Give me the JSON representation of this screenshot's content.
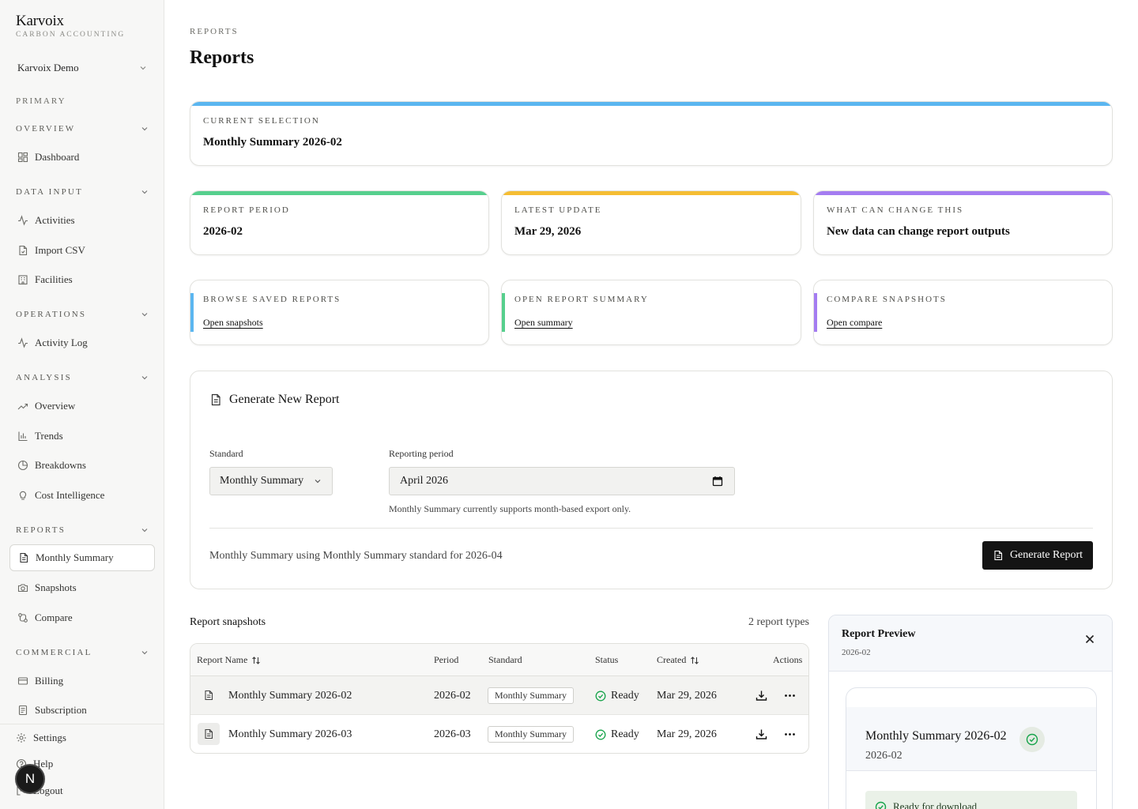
{
  "brand": {
    "name": "Karvoix",
    "subtitle": "CARBON ACCOUNTING"
  },
  "org_selector": {
    "label": "Karvoix Demo"
  },
  "sidebar": {
    "primary_label": "PRIMARY",
    "groups": [
      {
        "title": "OVERVIEW",
        "items": [
          {
            "label": "Dashboard",
            "icon": "grid-icon"
          }
        ]
      },
      {
        "title": "DATA INPUT",
        "items": [
          {
            "label": "Activities",
            "icon": "activity-icon"
          },
          {
            "label": "Import CSV",
            "icon": "file-csv-icon"
          },
          {
            "label": "Facilities",
            "icon": "building-icon"
          }
        ]
      },
      {
        "title": "OPERATIONS",
        "items": [
          {
            "label": "Activity Log",
            "icon": "activity-icon"
          }
        ]
      },
      {
        "title": "ANALYSIS",
        "items": [
          {
            "label": "Overview",
            "icon": "trending-up-icon"
          },
          {
            "label": "Trends",
            "icon": "bar-chart-icon"
          },
          {
            "label": "Breakdowns",
            "icon": "pie-chart-icon"
          },
          {
            "label": "Cost Intelligence",
            "icon": "lightbulb-icon"
          }
        ]
      },
      {
        "title": "REPORTS",
        "items": [
          {
            "label": "Monthly Summary",
            "icon": "file-text-icon",
            "active": true
          },
          {
            "label": "Snapshots",
            "icon": "camera-icon"
          },
          {
            "label": "Compare",
            "icon": "compare-icon"
          }
        ]
      },
      {
        "title": "COMMERCIAL",
        "items": [
          {
            "label": "Billing",
            "icon": "credit-card-icon"
          },
          {
            "label": "Subscription",
            "icon": "receipt-icon"
          }
        ]
      }
    ],
    "footer": [
      {
        "label": "Settings",
        "icon": "gear-icon"
      },
      {
        "label": "Help",
        "icon": "help-icon"
      },
      {
        "label": "Logout",
        "icon": "logout-icon"
      }
    ],
    "fab_letter": "N"
  },
  "page": {
    "breadcrumb": "REPORTS",
    "title": "Reports"
  },
  "current_selection": {
    "label": "CURRENT SELECTION",
    "value": "Monthly Summary 2026-02",
    "accent": "#5bb6f0"
  },
  "stats": [
    {
      "label": "REPORT PERIOD",
      "value": "2026-02",
      "accent": "#56cf8d"
    },
    {
      "label": "LATEST UPDATE",
      "value": "Mar 29, 2026",
      "accent": "#f5bd33"
    },
    {
      "label": "WHAT CAN CHANGE THIS",
      "value": "New data can change report outputs",
      "accent": "#a47cf1"
    }
  ],
  "quicklinks": [
    {
      "label": "BROWSE SAVED REPORTS",
      "link": "Open snapshots",
      "accent": "#5bb6f0"
    },
    {
      "label": "OPEN REPORT SUMMARY",
      "link": "Open summary",
      "accent": "#56cf8d"
    },
    {
      "label": "COMPARE SNAPSHOTS",
      "link": "Open compare",
      "accent": "#a47cf1"
    }
  ],
  "generate": {
    "title": "Generate New Report",
    "standard_label": "Standard",
    "standard_value": "Monthly Summary",
    "period_label": "Reporting period",
    "period_value": "April 2026",
    "hint": "Monthly Summary currently supports month-based export only.",
    "summary": "Monthly Summary using Monthly Summary standard for 2026-04",
    "button": "Generate Report"
  },
  "snapshots": {
    "title": "Report snapshots",
    "count": "2 report types",
    "columns": {
      "name": "Report Name",
      "period": "Period",
      "standard": "Standard",
      "status": "Status",
      "created": "Created",
      "actions": "Actions"
    },
    "rows": [
      {
        "name": "Monthly Summary 2026-02",
        "period": "2026-02",
        "standard": "Monthly Summary",
        "status": "Ready",
        "created": "Mar 29, 2026"
      },
      {
        "name": "Monthly Summary 2026-03",
        "period": "2026-03",
        "standard": "Monthly Summary",
        "status": "Ready",
        "created": "Mar 29, 2026"
      }
    ]
  },
  "preview": {
    "title": "Report Preview",
    "subtitle": "2026-02",
    "report_name": "Monthly Summary 2026-02",
    "report_period": "2026-02",
    "ready_text": "Ready for download",
    "status_color": "#16a34a"
  }
}
